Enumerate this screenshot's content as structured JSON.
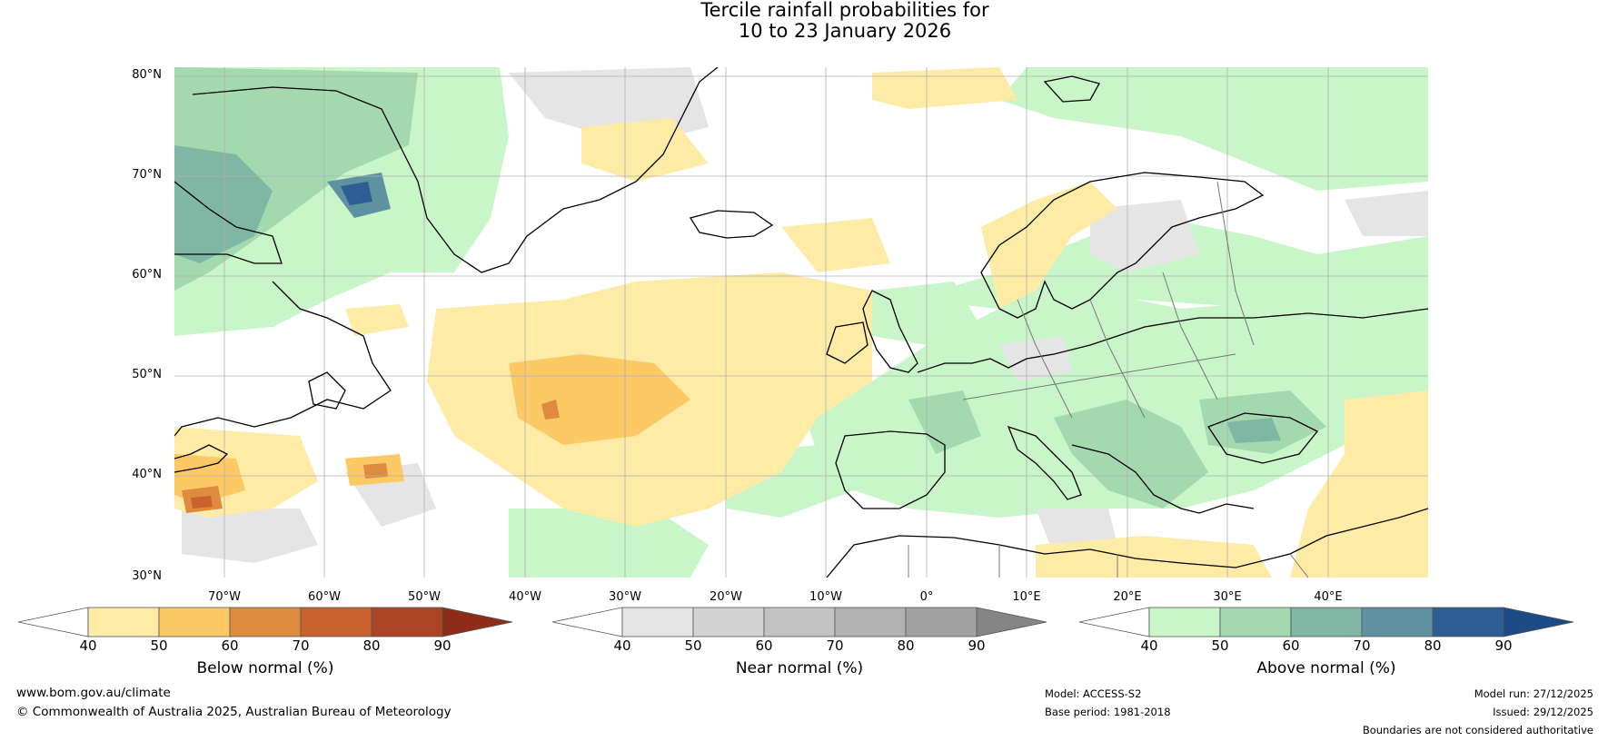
{
  "title_line1": "Tercile rainfall probabilities for",
  "title_line2": "10 to 23 January 2026",
  "lat_labels": [
    "80°N",
    "70°N",
    "60°N",
    "50°N",
    "40°N",
    "30°N"
  ],
  "lon_labels": [
    "70°W",
    "60°W",
    "50°W",
    "40°W",
    "30°W",
    "20°W",
    "10°W",
    "0°",
    "10°E",
    "20°E",
    "30°E",
    "40°E"
  ],
  "colorbars": [
    {
      "name": "below",
      "label": "Below normal (%)",
      "ticks": [
        "40",
        "50",
        "60",
        "70",
        "80",
        "90"
      ],
      "colors": [
        "#fdeba6",
        "#fdc965",
        "#de8a3f",
        "#c9622d",
        "#ac4424"
      ],
      "over_color": "#8e2c1a"
    },
    {
      "name": "near",
      "label": "Near normal (%)",
      "ticks": [
        "40",
        "50",
        "60",
        "70",
        "80",
        "90"
      ],
      "colors": [
        "#e5e5e5",
        "#d3d3d3",
        "#c3c3c3",
        "#b2b2b2",
        "#a2a2a2"
      ],
      "over_color": "#858585"
    },
    {
      "name": "above",
      "label": "Above normal (%)",
      "ticks": [
        "40",
        "50",
        "60",
        "70",
        "80",
        "90"
      ],
      "colors": [
        "#c8f6c8",
        "#a4d9b0",
        "#80b6a4",
        "#5f92a0",
        "#2d5d93"
      ],
      "over_color": "#1b4a85"
    }
  ],
  "footer": {
    "url": "www.bom.gov.au/climate",
    "copyright": "© Commonwealth of Australia 2025, Australian Bureau of Meteorology",
    "model": "Model: ACCESS-S2",
    "base_period": "Base period: 1981-2018",
    "model_run": "Model run: 27/12/2025",
    "issued": "Issued: 29/12/2025",
    "disclaimer": "Boundaries are not considered authoritative"
  },
  "colors": {
    "coast": "#000000",
    "border": "#777777",
    "grid": "#b0b0b0"
  }
}
